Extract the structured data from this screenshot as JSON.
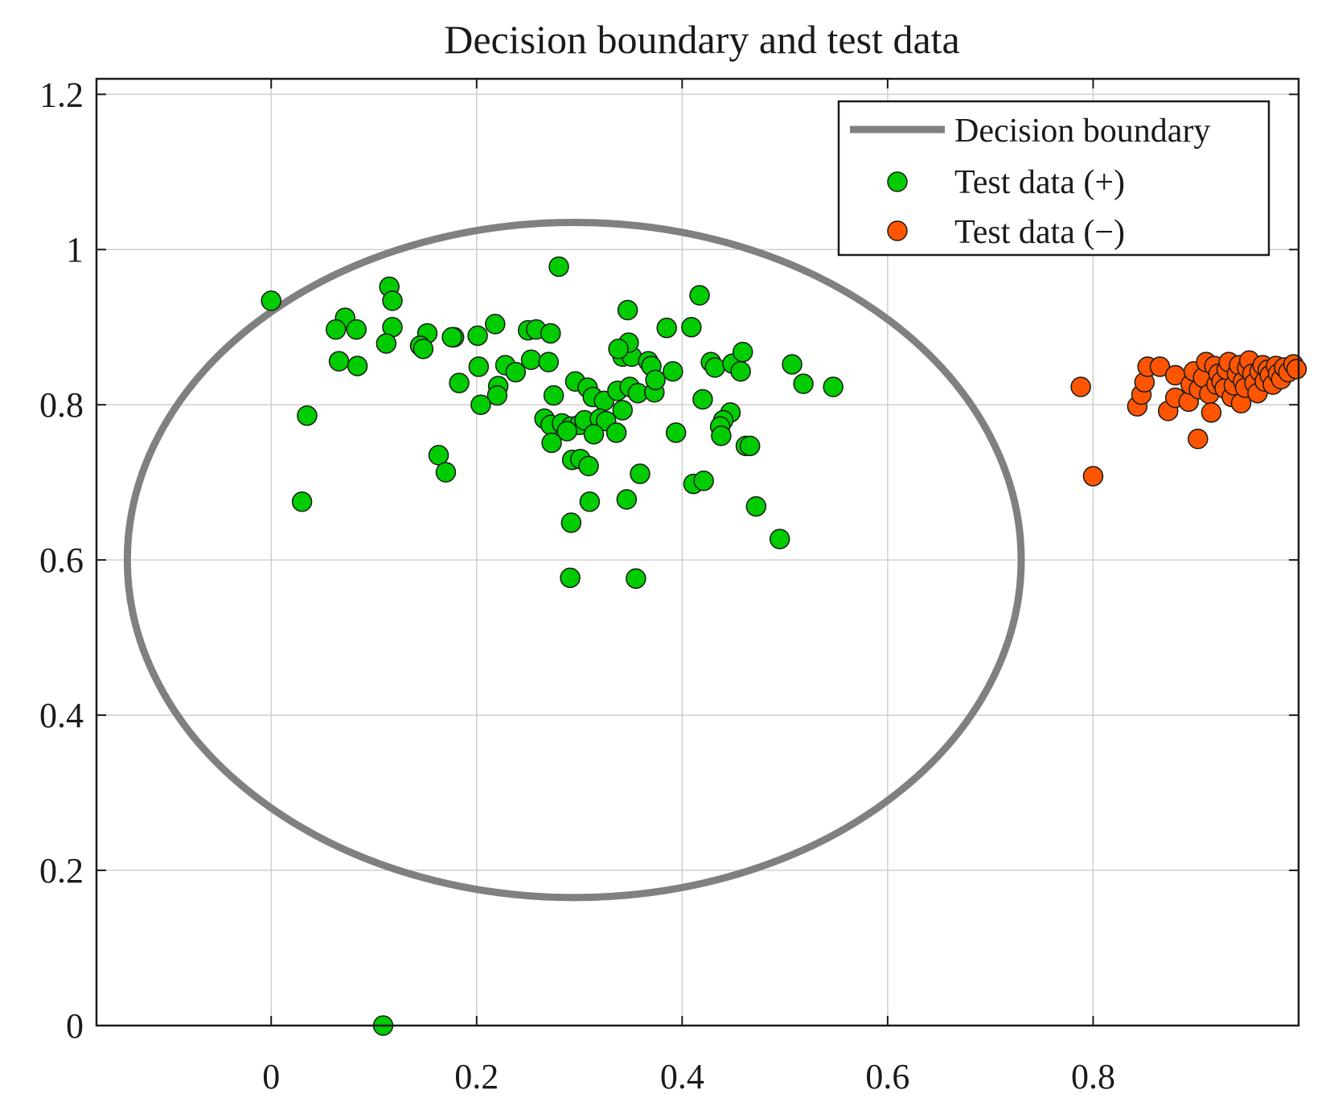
{
  "chart_data": {
    "type": "scatter",
    "title": "Decision boundary and test data",
    "xlabel": "",
    "ylabel": "",
    "xlim": [
      -0.17,
      1.0
    ],
    "ylim": [
      0,
      1.22
    ],
    "grid": true,
    "legend_position": "top-right",
    "x_ticks": [
      {
        "value": 0,
        "label": "0"
      },
      {
        "value": 0.2,
        "label": "0.2"
      },
      {
        "value": 0.4,
        "label": "0.4"
      },
      {
        "value": 0.6,
        "label": "0.6"
      },
      {
        "value": 0.8,
        "label": "0.8"
      }
    ],
    "y_ticks": [
      {
        "value": 0,
        "label": "0"
      },
      {
        "value": 0.2,
        "label": "0.2"
      },
      {
        "value": 0.4,
        "label": "0.4"
      },
      {
        "value": 0.6,
        "label": "0.6"
      },
      {
        "value": 0.8,
        "label": "0.8"
      },
      {
        "value": 1,
        "label": "1"
      },
      {
        "value": 1.2,
        "label": "1.2"
      }
    ],
    "boundary": {
      "name": "Decision boundary",
      "color": "#808080",
      "center": [
        0.295,
        0.6
      ],
      "radii": [
        0.435,
        0.435
      ]
    },
    "series": [
      {
        "name": "Test data (+)",
        "color": "#00cc00",
        "points": [
          [
            0.0,
            0.934
          ],
          [
            0.115,
            0.952
          ],
          [
            0.118,
            0.934
          ],
          [
            0.28,
            0.978
          ],
          [
            0.417,
            0.941
          ],
          [
            0.347,
            0.922
          ],
          [
            0.072,
            0.912
          ],
          [
            0.063,
            0.897
          ],
          [
            0.083,
            0.897
          ],
          [
            0.118,
            0.9
          ],
          [
            0.152,
            0.892
          ],
          [
            0.178,
            0.887
          ],
          [
            0.201,
            0.889
          ],
          [
            0.218,
            0.904
          ],
          [
            0.25,
            0.896
          ],
          [
            0.258,
            0.897
          ],
          [
            0.272,
            0.892
          ],
          [
            0.112,
            0.879
          ],
          [
            0.145,
            0.876
          ],
          [
            0.148,
            0.872
          ],
          [
            0.176,
            0.887
          ],
          [
            0.066,
            0.856
          ],
          [
            0.084,
            0.85
          ],
          [
            0.253,
            0.858
          ],
          [
            0.27,
            0.855
          ],
          [
            0.342,
            0.862
          ],
          [
            0.351,
            0.862
          ],
          [
            0.348,
            0.88
          ],
          [
            0.385,
            0.899
          ],
          [
            0.409,
            0.9
          ],
          [
            0.338,
            0.872
          ],
          [
            0.367,
            0.856
          ],
          [
            0.37,
            0.85
          ],
          [
            0.391,
            0.843
          ],
          [
            0.428,
            0.855
          ],
          [
            0.432,
            0.848
          ],
          [
            0.449,
            0.853
          ],
          [
            0.459,
            0.868
          ],
          [
            0.457,
            0.843
          ],
          [
            0.507,
            0.852
          ],
          [
            0.518,
            0.827
          ],
          [
            0.547,
            0.823
          ],
          [
            0.202,
            0.849
          ],
          [
            0.228,
            0.851
          ],
          [
            0.238,
            0.842
          ],
          [
            0.183,
            0.828
          ],
          [
            0.221,
            0.824
          ],
          [
            0.22,
            0.812
          ],
          [
            0.204,
            0.8
          ],
          [
            0.296,
            0.83
          ],
          [
            0.308,
            0.822
          ],
          [
            0.313,
            0.81
          ],
          [
            0.324,
            0.805
          ],
          [
            0.337,
            0.818
          ],
          [
            0.349,
            0.823
          ],
          [
            0.357,
            0.815
          ],
          [
            0.373,
            0.816
          ],
          [
            0.374,
            0.832
          ],
          [
            0.275,
            0.812
          ],
          [
            0.266,
            0.782
          ],
          [
            0.272,
            0.774
          ],
          [
            0.283,
            0.776
          ],
          [
            0.292,
            0.772
          ],
          [
            0.3,
            0.774
          ],
          [
            0.305,
            0.78
          ],
          [
            0.32,
            0.782
          ],
          [
            0.326,
            0.779
          ],
          [
            0.342,
            0.793
          ],
          [
            0.42,
            0.807
          ],
          [
            0.447,
            0.79
          ],
          [
            0.44,
            0.78
          ],
          [
            0.437,
            0.772
          ],
          [
            0.438,
            0.76
          ],
          [
            0.394,
            0.764
          ],
          [
            0.336,
            0.764
          ],
          [
            0.314,
            0.762
          ],
          [
            0.288,
            0.766
          ],
          [
            0.273,
            0.751
          ],
          [
            0.293,
            0.729
          ],
          [
            0.301,
            0.73
          ],
          [
            0.309,
            0.721
          ],
          [
            0.462,
            0.747
          ],
          [
            0.466,
            0.747
          ],
          [
            0.163,
            0.735
          ],
          [
            0.17,
            0.713
          ],
          [
            0.359,
            0.711
          ],
          [
            0.411,
            0.698
          ],
          [
            0.421,
            0.702
          ],
          [
            0.03,
            0.675
          ],
          [
            0.035,
            0.786
          ],
          [
            0.31,
            0.675
          ],
          [
            0.346,
            0.678
          ],
          [
            0.472,
            0.669
          ],
          [
            0.292,
            0.648
          ],
          [
            0.495,
            0.627
          ],
          [
            0.291,
            0.577
          ],
          [
            0.355,
            0.576
          ],
          [
            0.109,
            0.0
          ]
        ]
      },
      {
        "name": "Test data (−)",
        "color": "#ff5500",
        "points": [
          [
            0.788,
            0.823
          ],
          [
            0.8,
            0.708
          ],
          [
            0.843,
            0.798
          ],
          [
            0.847,
            0.813
          ],
          [
            0.85,
            0.829
          ],
          [
            0.853,
            0.849
          ],
          [
            0.865,
            0.849
          ],
          [
            0.873,
            0.792
          ],
          [
            0.88,
            0.809
          ],
          [
            0.88,
            0.838
          ],
          [
            0.893,
            0.804
          ],
          [
            0.895,
            0.826
          ],
          [
            0.898,
            0.843
          ],
          [
            0.902,
            0.756
          ],
          [
            0.903,
            0.82
          ],
          [
            0.907,
            0.835
          ],
          [
            0.91,
            0.855
          ],
          [
            0.913,
            0.814
          ],
          [
            0.915,
            0.79
          ],
          [
            0.918,
            0.85
          ],
          [
            0.92,
            0.826
          ],
          [
            0.922,
            0.84
          ],
          [
            0.925,
            0.83
          ],
          [
            0.928,
            0.821
          ],
          [
            0.93,
            0.845
          ],
          [
            0.932,
            0.855
          ],
          [
            0.935,
            0.81
          ],
          [
            0.937,
            0.825
          ],
          [
            0.94,
            0.84
          ],
          [
            0.942,
            0.851
          ],
          [
            0.944,
            0.802
          ],
          [
            0.946,
            0.83
          ],
          [
            0.948,
            0.822
          ],
          [
            0.95,
            0.847
          ],
          [
            0.952,
            0.857
          ],
          [
            0.955,
            0.84
          ],
          [
            0.957,
            0.828
          ],
          [
            0.96,
            0.815
          ],
          [
            0.962,
            0.843
          ],
          [
            0.965,
            0.851
          ],
          [
            0.967,
            0.83
          ],
          [
            0.97,
            0.845
          ],
          [
            0.972,
            0.838
          ],
          [
            0.975,
            0.826
          ],
          [
            0.978,
            0.85
          ],
          [
            0.98,
            0.84
          ],
          [
            0.983,
            0.833
          ],
          [
            0.986,
            0.848
          ],
          [
            0.99,
            0.842
          ],
          [
            0.995,
            0.852
          ],
          [
            0.998,
            0.846
          ]
        ]
      }
    ]
  }
}
